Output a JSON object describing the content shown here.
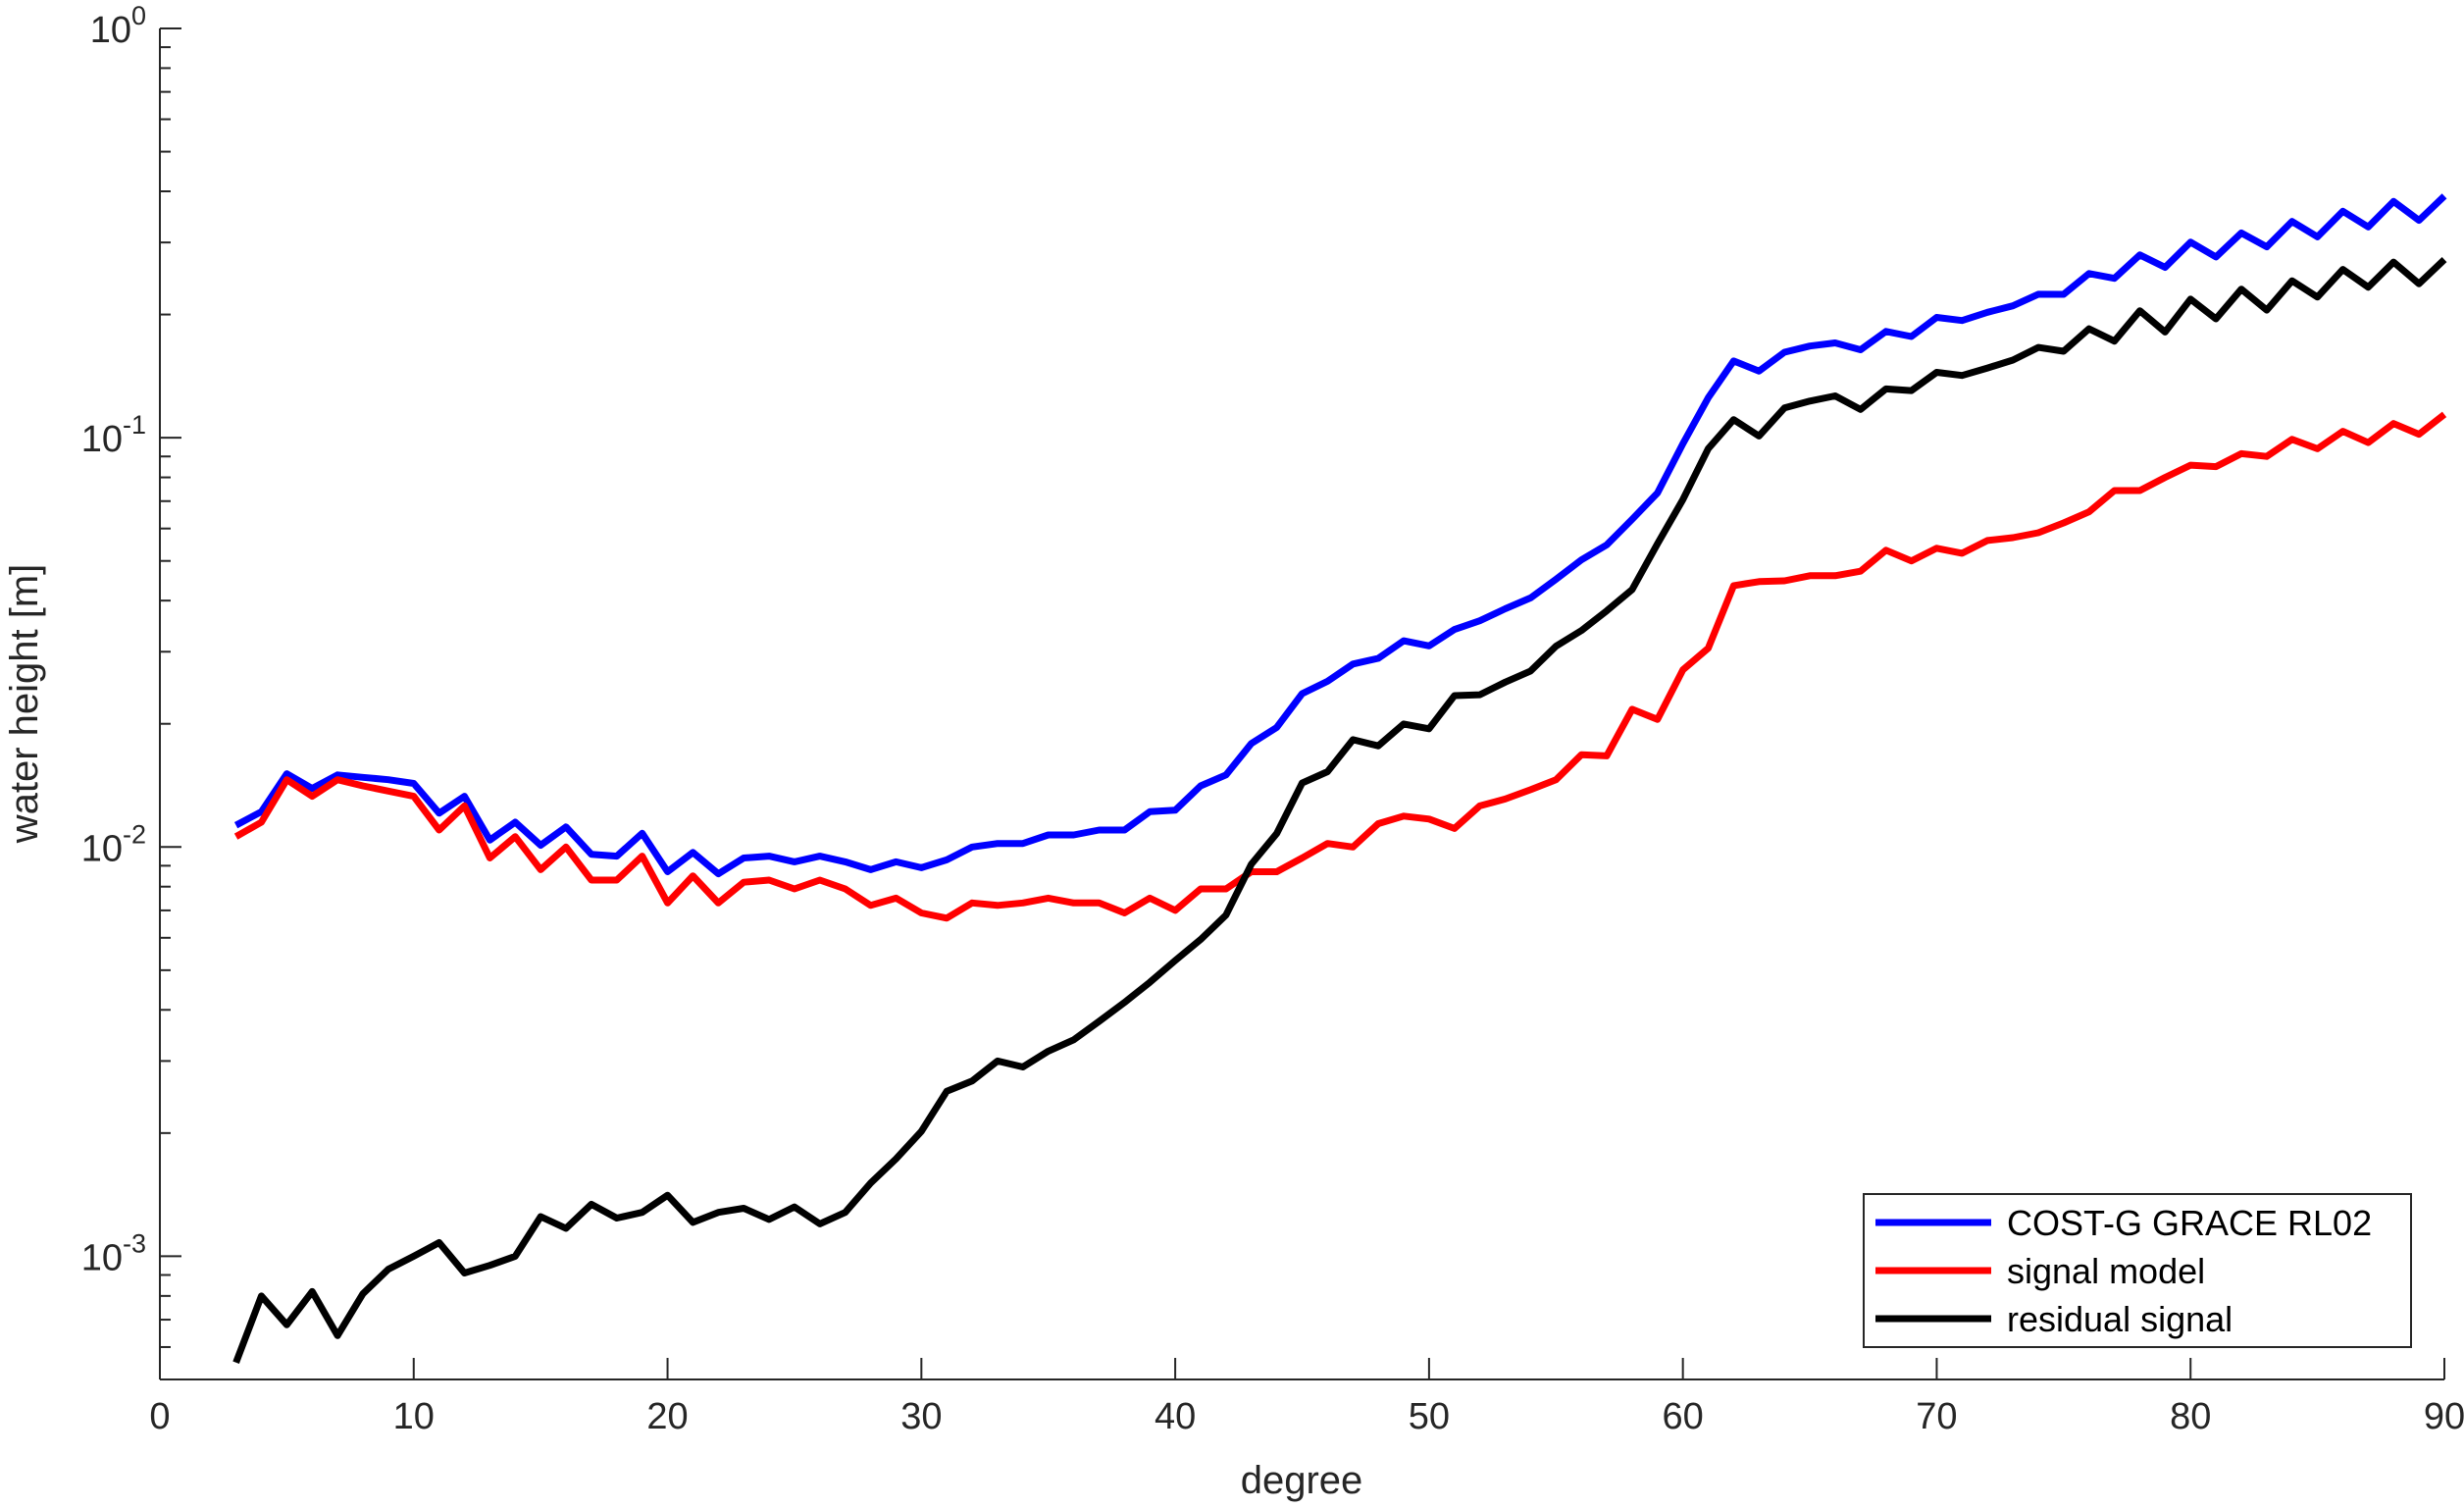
{
  "chart_data": {
    "type": "line",
    "title": "",
    "xlabel": "degree",
    "ylabel": "water height [m]",
    "xlim": [
      0,
      90
    ],
    "ylim": [
      0.0005,
      1
    ],
    "yscale": "log",
    "grid": false,
    "legend_placement": "bottom-right",
    "x_ticks": [
      0,
      10,
      20,
      30,
      40,
      50,
      60,
      70,
      80,
      90
    ],
    "y_ticks": [
      {
        "value": 0.001,
        "base": "10",
        "exponent": "-3"
      },
      {
        "value": 0.01,
        "base": "10",
        "exponent": "-2"
      },
      {
        "value": 0.1,
        "base": "10",
        "exponent": "-1"
      },
      {
        "value": 1,
        "base": "10",
        "exponent": "0"
      }
    ],
    "x": [
      3,
      4,
      5,
      6,
      7,
      8,
      9,
      10,
      11,
      12,
      13,
      14,
      15,
      16,
      17,
      18,
      19,
      20,
      21,
      22,
      23,
      24,
      25,
      26,
      27,
      28,
      29,
      30,
      31,
      32,
      33,
      34,
      35,
      36,
      37,
      38,
      39,
      40,
      41,
      42,
      43,
      44,
      45,
      46,
      47,
      48,
      49,
      50,
      51,
      52,
      53,
      54,
      55,
      56,
      57,
      58,
      59,
      60,
      61,
      62,
      63,
      64,
      65,
      66,
      67,
      68,
      69,
      70,
      71,
      72,
      73,
      74,
      75,
      76,
      77,
      78,
      79,
      80,
      81,
      82,
      83,
      84,
      85,
      86,
      87,
      88,
      89,
      90
    ],
    "series": [
      {
        "name": "COST-G GRACE RL02",
        "color": "#0000ff",
        "values": [
          0.0113,
          0.0122,
          0.0151,
          0.0139,
          0.015,
          0.0148,
          0.0146,
          0.0143,
          0.0121,
          0.0133,
          0.0104,
          0.0115,
          0.0101,
          0.0112,
          0.0096,
          0.0095,
          0.0108,
          0.0087,
          0.0097,
          0.0086,
          0.0094,
          0.0095,
          0.0092,
          0.0095,
          0.0092,
          0.0088,
          0.0092,
          0.0089,
          0.0093,
          0.01,
          0.0102,
          0.0102,
          0.0107,
          0.0107,
          0.011,
          0.011,
          0.0122,
          0.0123,
          0.0141,
          0.015,
          0.0179,
          0.0196,
          0.0237,
          0.0254,
          0.028,
          0.0289,
          0.0319,
          0.031,
          0.034,
          0.0357,
          0.0382,
          0.0406,
          0.0451,
          0.0503,
          0.0547,
          0.0632,
          0.0733,
          0.0967,
          0.1252,
          0.154,
          0.1455,
          0.1618,
          0.1675,
          0.1705,
          0.164,
          0.1819,
          0.1767,
          0.1968,
          0.1933,
          0.2025,
          0.21,
          0.2242,
          0.224,
          0.2518,
          0.2452,
          0.2797,
          0.2608,
          0.3005,
          0.2765,
          0.3166,
          0.2927,
          0.3377,
          0.3096,
          0.3575,
          0.3274,
          0.3779,
          0.3397,
          0.3896
        ]
      },
      {
        "name": "signal model",
        "color": "#ff0000",
        "values": [
          0.0106,
          0.0115,
          0.0146,
          0.0133,
          0.0146,
          0.0141,
          0.0137,
          0.0133,
          0.011,
          0.0126,
          0.0094,
          0.0106,
          0.0088,
          0.01,
          0.0083,
          0.0083,
          0.0095,
          0.0073,
          0.0085,
          0.0073,
          0.0082,
          0.0083,
          0.0079,
          0.0083,
          0.0079,
          0.0072,
          0.0075,
          0.0069,
          0.0067,
          0.0073,
          0.0072,
          0.0073,
          0.0075,
          0.0073,
          0.0073,
          0.0069,
          0.0075,
          0.007,
          0.0079,
          0.0079,
          0.0087,
          0.0087,
          0.0094,
          0.0102,
          0.01,
          0.0114,
          0.0119,
          0.0117,
          0.0111,
          0.0126,
          0.0131,
          0.0138,
          0.0146,
          0.0168,
          0.0167,
          0.0217,
          0.0205,
          0.0271,
          0.0306,
          0.0435,
          0.0445,
          0.0447,
          0.046,
          0.046,
          0.0472,
          0.0531,
          0.05,
          0.0537,
          0.0522,
          0.0561,
          0.057,
          0.0586,
          0.0619,
          0.0659,
          0.0743,
          0.0743,
          0.08,
          0.0857,
          0.085,
          0.0914,
          0.09,
          0.0991,
          0.094,
          0.1037,
          0.0973,
          0.1083,
          0.102,
          0.114
        ]
      },
      {
        "name": "residual signal",
        "color": "#000000",
        "values": [
          0.00055,
          0.0008,
          0.00068,
          0.00082,
          0.00064,
          0.00081,
          0.00093,
          0.001,
          0.00108,
          0.00091,
          0.00095,
          0.001,
          0.00125,
          0.00117,
          0.00134,
          0.00124,
          0.00128,
          0.00141,
          0.00121,
          0.00128,
          0.00131,
          0.00123,
          0.00132,
          0.0012,
          0.00128,
          0.00151,
          0.00173,
          0.00202,
          0.00253,
          0.00268,
          0.003,
          0.0029,
          0.00317,
          0.00338,
          0.00375,
          0.00417,
          0.00467,
          0.00528,
          0.00594,
          0.00682,
          0.00908,
          0.01079,
          0.01433,
          0.01528,
          0.01829,
          0.01767,
          0.01998,
          0.01945,
          0.02343,
          0.02355,
          0.02528,
          0.02692,
          0.03095,
          0.03379,
          0.03776,
          0.04257,
          0.05508,
          0.07063,
          0.09405,
          0.11074,
          0.10095,
          0.11826,
          0.12286,
          0.12656,
          0.11727,
          0.13162,
          0.13035,
          0.14449,
          0.14193,
          0.14804,
          0.15479,
          0.16624,
          0.16269,
          0.18462,
          0.17219,
          0.20433,
          0.18124,
          0.21805,
          0.19512,
          0.23074,
          0.20503,
          0.24177,
          0.22067,
          0.25776,
          0.23332,
          0.26866,
          0.23781,
          0.27243
        ]
      }
    ]
  }
}
